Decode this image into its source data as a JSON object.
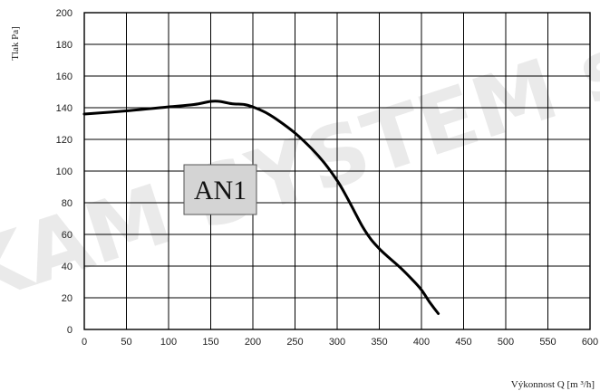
{
  "watermark": "PROKAM SYSTEM s.r.o.",
  "chart_data": {
    "type": "line",
    "title": "",
    "xlabel": "Výkonnost Q [m ³/h]",
    "ylabel": "Tlak Pa]",
    "xlim": [
      0,
      600
    ],
    "ylim": [
      0,
      200
    ],
    "x_ticks": [
      0,
      50,
      100,
      150,
      200,
      250,
      300,
      350,
      400,
      450,
      500,
      550,
      600
    ],
    "y_ticks": [
      0,
      20,
      40,
      60,
      80,
      100,
      120,
      140,
      160,
      180,
      200
    ],
    "grid": true,
    "annotation": "AN1",
    "series": [
      {
        "name": "",
        "color": "#000000",
        "x": [
          0,
          50,
          100,
          130,
          150,
          160,
          175,
          190,
          200,
          215,
          230,
          250,
          270,
          285,
          300,
          310,
          320,
          330,
          340,
          350,
          360,
          375,
          390,
          400,
          410,
          420
        ],
        "y": [
          136,
          138,
          140.5,
          142,
          144,
          144,
          142.5,
          142,
          140.5,
          137,
          132,
          124,
          114,
          105,
          94,
          85,
          75,
          65,
          57,
          51,
          46,
          39,
          31,
          25,
          17,
          10
        ]
      }
    ]
  },
  "colors": {
    "line": "#000000",
    "grid": "#000000",
    "badge_fill": "#d4d4d4"
  }
}
